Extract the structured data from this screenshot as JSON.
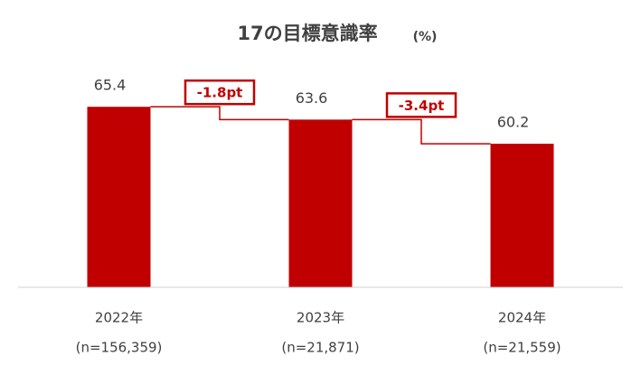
{
  "chart_data": {
    "type": "bar",
    "title": "17の目標意識率",
    "unit": "(%)",
    "categories": [
      "2022年",
      "2023年",
      "2024年"
    ],
    "sample_sizes": [
      "(n=156,359)",
      "(n=21,871)",
      "(n=21,559)"
    ],
    "values": [
      65.4,
      63.6,
      60.2
    ],
    "color": "#c00000",
    "annotations": [
      "-1.8pt",
      "-3.4pt"
    ],
    "ylim": [
      40,
      70
    ]
  }
}
